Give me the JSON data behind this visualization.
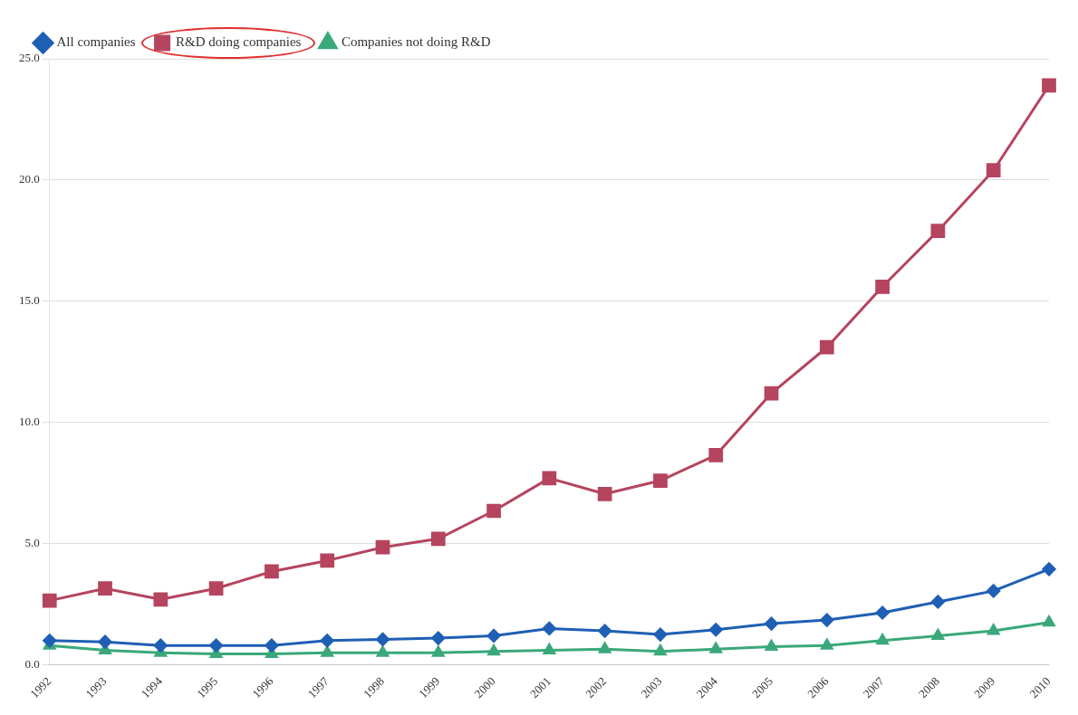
{
  "chart_data": {
    "type": "line",
    "categories": [
      "1992",
      "1993",
      "1994",
      "1995",
      "1996",
      "1997",
      "1998",
      "1999",
      "2000",
      "2001",
      "2002",
      "2003",
      "2004",
      "2005",
      "2006",
      "2007",
      "2008",
      "2009",
      "2010"
    ],
    "series": [
      {
        "name": "All companies",
        "color": "#1f5fb4",
        "marker": "diamond",
        "values": [
          1.0,
          0.95,
          0.8,
          0.8,
          0.8,
          1.0,
          1.05,
          1.1,
          1.2,
          1.5,
          1.4,
          1.25,
          1.45,
          1.7,
          1.85,
          2.15,
          2.6,
          3.05,
          3.95
        ]
      },
      {
        "name": "R&D doing companies",
        "color": "#b5445e",
        "marker": "square",
        "values": [
          2.65,
          3.15,
          2.7,
          3.15,
          3.85,
          4.3,
          4.85,
          5.2,
          6.35,
          7.7,
          7.05,
          7.6,
          8.65,
          11.2,
          13.1,
          15.6,
          17.9,
          20.4,
          23.9
        ]
      },
      {
        "name": "Companies not doing R&D",
        "color": "#3aa87a",
        "marker": "triangle",
        "values": [
          0.8,
          0.6,
          0.5,
          0.45,
          0.45,
          0.5,
          0.5,
          0.5,
          0.55,
          0.6,
          0.65,
          0.55,
          0.65,
          0.75,
          0.8,
          1.0,
          1.2,
          1.4,
          1.75
        ]
      }
    ],
    "ylim": [
      0,
      25
    ],
    "yticks": [
      {
        "value": 0,
        "label": "0.0"
      },
      {
        "value": 5,
        "label": "5.0"
      },
      {
        "value": 10,
        "label": "10.0"
      },
      {
        "value": 15,
        "label": "15.0"
      },
      {
        "value": 20,
        "label": "20.0"
      },
      {
        "value": 25,
        "label": "25.0"
      }
    ],
    "grid": "y",
    "legend": "top left",
    "line_style": "solid"
  }
}
